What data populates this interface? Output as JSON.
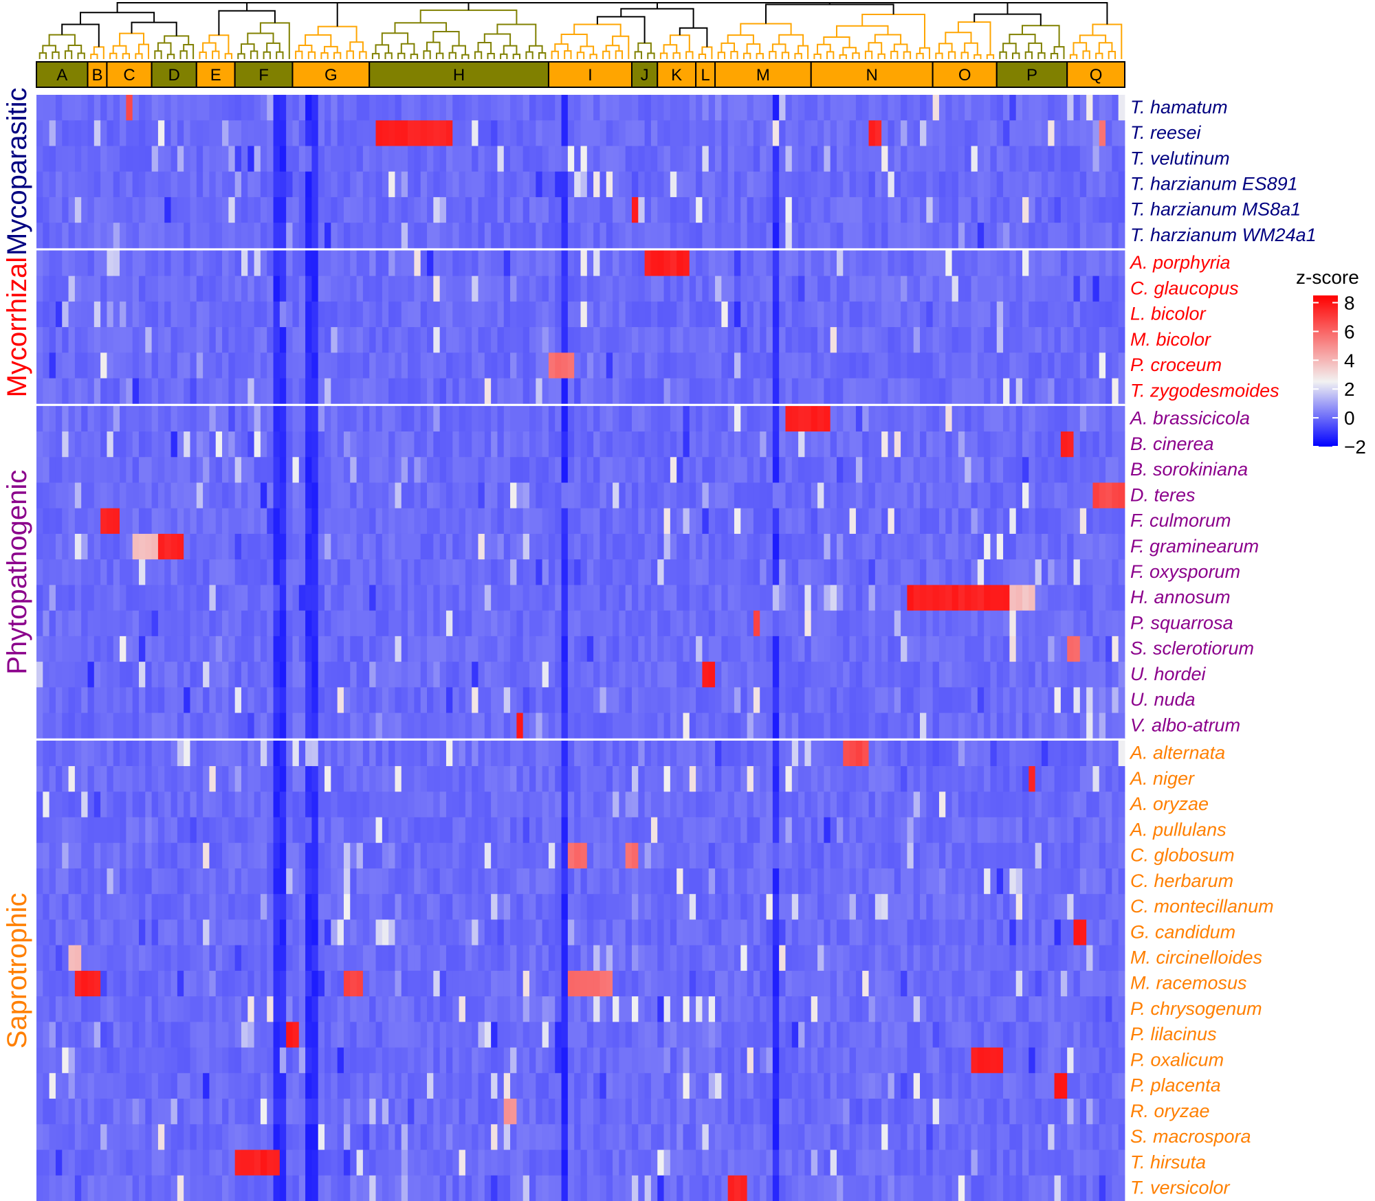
{
  "chart_data": {
    "type": "heatmap",
    "legend": {
      "title": "z-score",
      "ticks": [
        8,
        6,
        4,
        2,
        0,
        -2
      ],
      "tick_labels": [
        "8",
        "6",
        "4",
        "2",
        "0",
        "−2"
      ],
      "range": [
        -2,
        8.5
      ],
      "colors": {
        "low": "#0000ff",
        "mid": "#f2f2f2",
        "high": "#ff0000"
      },
      "mid_value": 2.5
    },
    "base_value": 0,
    "cluster_colors": {
      "olive": "#808000",
      "orange": "#ffa500"
    },
    "clusters": [
      {
        "label": "A",
        "color": "olive",
        "width": 8
      },
      {
        "label": "B",
        "color": "orange",
        "width": 3
      },
      {
        "label": "C",
        "color": "orange",
        "width": 7
      },
      {
        "label": "D",
        "color": "olive",
        "width": 7
      },
      {
        "label": "E",
        "color": "orange",
        "width": 6
      },
      {
        "label": "F",
        "color": "olive",
        "width": 9
      },
      {
        "label": "G",
        "color": "orange",
        "width": 12
      },
      {
        "label": "H",
        "color": "olive",
        "width": 28
      },
      {
        "label": "I",
        "color": "orange",
        "width": 13
      },
      {
        "label": "J",
        "color": "olive",
        "width": 4
      },
      {
        "label": "K",
        "color": "orange",
        "width": 6
      },
      {
        "label": "L",
        "color": "orange",
        "width": 3
      },
      {
        "label": "M",
        "color": "orange",
        "width": 15
      },
      {
        "label": "N",
        "color": "orange",
        "width": 19
      },
      {
        "label": "O",
        "color": "orange",
        "width": 10
      },
      {
        "label": "P",
        "color": "olive",
        "width": 11
      },
      {
        "label": "Q",
        "color": "orange",
        "width": 9
      }
    ],
    "groups": [
      {
        "name": "Mycoparasitic",
        "color": "#000080",
        "rows": [
          "T. hamatum",
          "T. reesei",
          "T. velutinum",
          "T. harzianum ES891",
          "T. harzianum MS8a1",
          "T. harzianum WM24a1"
        ]
      },
      {
        "name": "Mycorrhizal",
        "color": "#ff0000",
        "rows": [
          "A. porphyria",
          "C. glaucopus",
          "L. bicolor",
          "M. bicolor",
          "P. croceum",
          "T. zygodesmoides"
        ]
      },
      {
        "name": "Phytopathogenic",
        "color": "#8b008b",
        "rows": [
          "A. brassicicola",
          "B. cinerea",
          "B. sorokiniana",
          "D. teres",
          "F. culmorum",
          "F. graminearum",
          "F. oxysporum",
          "H. annosum",
          "P. squarrosa",
          "S. sclerotiorum",
          "U. hordei",
          "U. nuda",
          "V. albo-atrum"
        ]
      },
      {
        "name": "Saprotrophic",
        "color": "#ff7f00",
        "rows": [
          "A. alternata",
          "A. niger",
          "A. oryzae",
          "A. pullulans",
          "C. globosum",
          "C. herbarum",
          "C. montecillanum",
          "G. candidum",
          "M. circinelloides",
          "M. racemosus",
          "P. chrysogenum",
          "P. lilacinus",
          "P. oxalicum",
          "P. placenta",
          "R. oryzae",
          "S. macrospora",
          "T. hirsuta",
          "T. versicolor"
        ]
      }
    ],
    "hot_spots": [
      {
        "row": "T. hamatum",
        "cols": [
          215,
          219
        ],
        "value": 8
      },
      {
        "row": "T. hamatum",
        "cols": [
          219,
          224
        ],
        "value": 3
      },
      {
        "row": "T. hamatum",
        "cols": [
          14,
          15
        ],
        "value": 7
      },
      {
        "row": "T. reesei",
        "cols": [
          53,
          65
        ],
        "value": 8
      },
      {
        "row": "T. reesei",
        "cols": [
          130,
          132
        ],
        "value": 8
      },
      {
        "row": "T. reesei",
        "cols": [
          166,
          167
        ],
        "value": 6
      },
      {
        "row": "T. harzianum MS8a1",
        "cols": [
          93,
          94
        ],
        "value": 8
      },
      {
        "row": "A. porphyria",
        "cols": [
          95,
          102
        ],
        "value": 8
      },
      {
        "row": "C. glaucopus",
        "cols": [
          215,
          216
        ],
        "value": 7
      },
      {
        "row": "P. croceum",
        "cols": [
          80,
          84
        ],
        "value": 6
      },
      {
        "row": "T. zygodesmoides",
        "cols": [
          212,
          213
        ],
        "value": 8
      },
      {
        "row": "A. brassicicola",
        "cols": [
          117,
          124
        ],
        "value": 8
      },
      {
        "row": "B. cinerea",
        "cols": [
          160,
          162
        ],
        "value": 8
      },
      {
        "row": "B. sorokiniana",
        "cols": [
          188,
          197
        ],
        "value": 8
      },
      {
        "row": "B. sorokiniana",
        "cols": [
          170,
          175
        ],
        "value": 4
      },
      {
        "row": "D. teres",
        "cols": [
          165,
          172
        ],
        "value": 7
      },
      {
        "row": "F. culmorum",
        "cols": [
          10,
          13
        ],
        "value": 8
      },
      {
        "row": "F. graminearum",
        "cols": [
          19,
          23
        ],
        "value": 8
      },
      {
        "row": "F. graminearum",
        "cols": [
          15,
          19
        ],
        "value": 4
      },
      {
        "row": "F. oxysporum",
        "cols": [
          180,
          182
        ],
        "value": 8
      },
      {
        "row": "H. annosum",
        "cols": [
          136,
          152
        ],
        "value": 8
      },
      {
        "row": "H. annosum",
        "cols": [
          152,
          156
        ],
        "value": 4
      },
      {
        "row": "P. squarrosa",
        "cols": [
          112,
          113
        ],
        "value": 7
      },
      {
        "row": "S. sclerotiorum",
        "cols": [
          161,
          163
        ],
        "value": 6
      },
      {
        "row": "U. hordei",
        "cols": [
          104,
          106
        ],
        "value": 8
      },
      {
        "row": "U. nuda",
        "cols": [
          182,
          184
        ],
        "value": 8
      },
      {
        "row": "V. albo-atrum",
        "cols": [
          75,
          76
        ],
        "value": 8
      },
      {
        "row": "A. alternata",
        "cols": [
          126,
          130
        ],
        "value": 7
      },
      {
        "row": "A. niger",
        "cols": [
          155,
          156
        ],
        "value": 8
      },
      {
        "row": "A. pullulans",
        "cols": [
          186,
          187
        ],
        "value": 8
      },
      {
        "row": "C. globosum",
        "cols": [
          83,
          86
        ],
        "value": 6
      },
      {
        "row": "C. globosum",
        "cols": [
          92,
          94
        ],
        "value": 6
      },
      {
        "row": "G. candidum",
        "cols": [
          162,
          164
        ],
        "value": 8
      },
      {
        "row": "M. circinelloides",
        "cols": [
          5,
          7
        ],
        "value": 4
      },
      {
        "row": "M. racemosus",
        "cols": [
          6,
          10
        ],
        "value": 8
      },
      {
        "row": "M. racemosus",
        "cols": [
          48,
          51
        ],
        "value": 7
      },
      {
        "row": "M. racemosus",
        "cols": [
          83,
          90
        ],
        "value": 6
      },
      {
        "row": "P. lilacinus",
        "cols": [
          39,
          41
        ],
        "value": 8
      },
      {
        "row": "P. oxalicum",
        "cols": [
          146,
          151
        ],
        "value": 8
      },
      {
        "row": "P. placenta",
        "cols": [
          159,
          161
        ],
        "value": 8
      },
      {
        "row": "R. oryzae",
        "cols": [
          73,
          75
        ],
        "value": 5
      },
      {
        "row": "T. hirsuta",
        "cols": [
          31,
          38
        ],
        "value": 8
      },
      {
        "row": "T. versicolor",
        "cols": [
          108,
          111
        ],
        "value": 8
      }
    ],
    "dark_columns": [
      37,
      38,
      42,
      43,
      82,
      115,
      174,
      177,
      178,
      179,
      181
    ],
    "noise_value_range": [
      -1.2,
      3
    ],
    "noise_fraction": 0.09
  }
}
